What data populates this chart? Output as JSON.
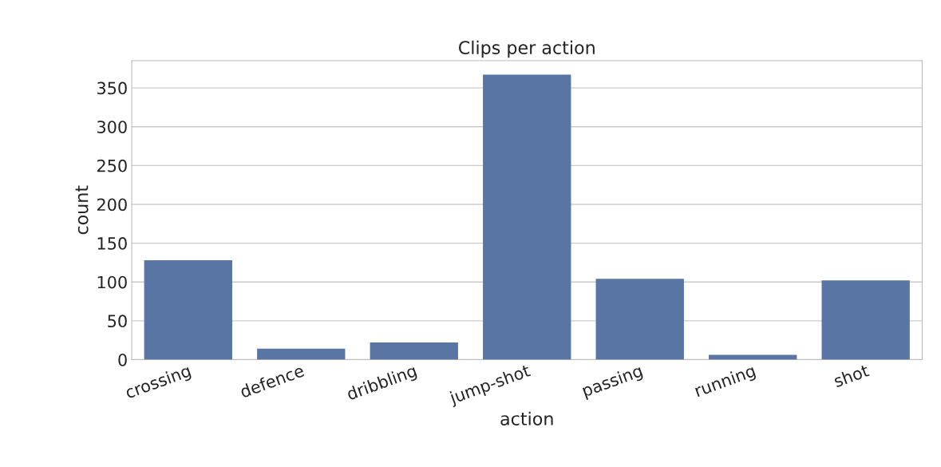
{
  "chart_data": {
    "type": "bar",
    "title": "Clips per action",
    "xlabel": "action",
    "ylabel": "count",
    "categories": [
      "crossing",
      "defence",
      "dribbling",
      "jump-shot",
      "passing",
      "running",
      "shot"
    ],
    "values": [
      128,
      14,
      22,
      367,
      104,
      6,
      102
    ],
    "color": "#5975a4",
    "ylim": [
      0,
      385
    ],
    "yticks": [
      0,
      50,
      100,
      150,
      200,
      250,
      300,
      350
    ],
    "grid": "y"
  }
}
